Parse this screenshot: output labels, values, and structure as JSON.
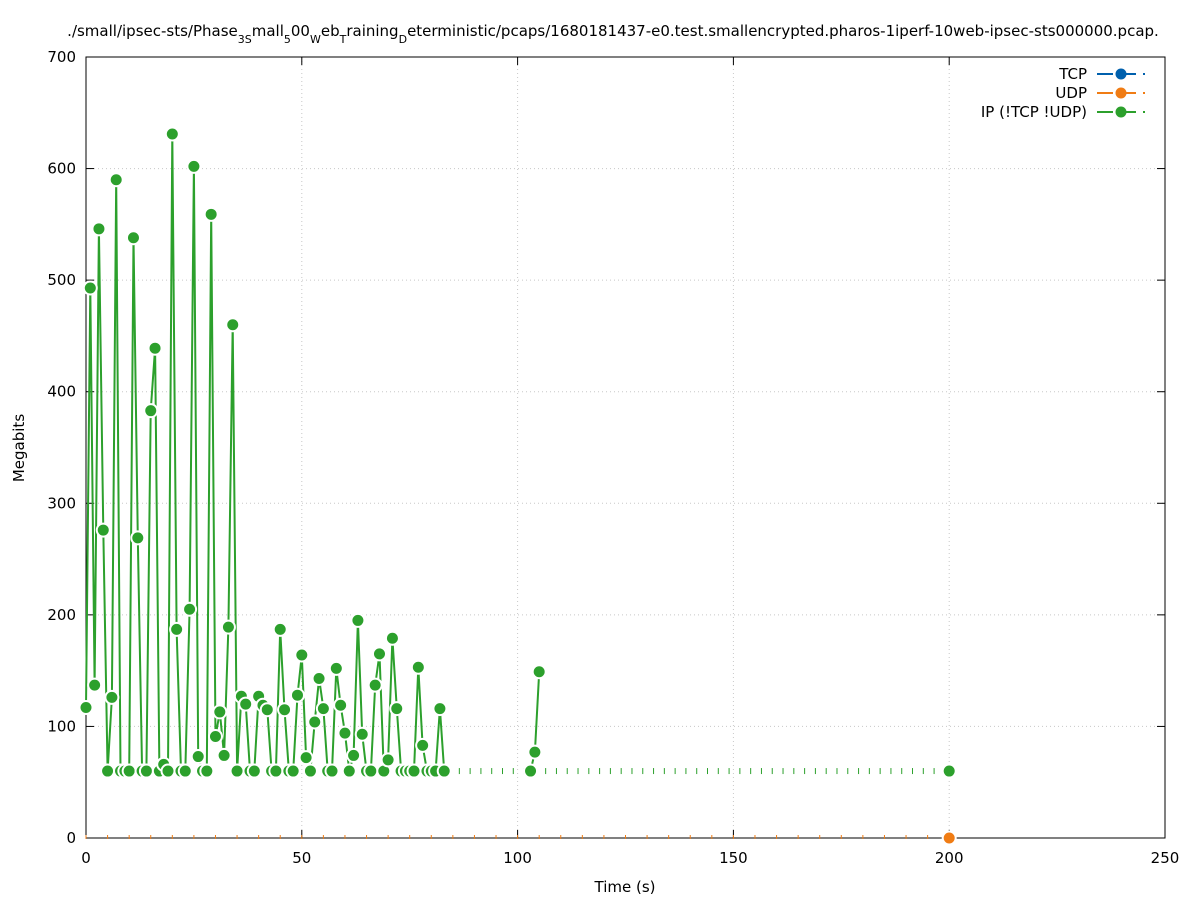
{
  "chart_data": {
    "type": "line",
    "title": {
      "segments": [
        {
          "text": "./small/ipsec-sts/Phase",
          "sub": false
        },
        {
          "text": "3S",
          "sub": true
        },
        {
          "text": "mall",
          "sub": false
        },
        {
          "text": "5",
          "sub": true
        },
        {
          "text": "00",
          "sub": false
        },
        {
          "text": "W",
          "sub": true
        },
        {
          "text": "eb",
          "sub": false
        },
        {
          "text": "T",
          "sub": true
        },
        {
          "text": "raining",
          "sub": false
        },
        {
          "text": "D",
          "sub": true
        },
        {
          "text": "eterministic/pcaps/1680181437-e0.test.smallencrypted.pharos-1iperf-10web-ipsec-sts000000.pcap.",
          "sub": false
        }
      ]
    },
    "xlabel": "Time (s)",
    "ylabel": "Megabits",
    "xlim": [
      0,
      250
    ],
    "ylim": [
      0,
      700
    ],
    "xticks": [
      0,
      50,
      100,
      150,
      200,
      250
    ],
    "yticks": [
      0,
      100,
      200,
      300,
      400,
      500,
      600,
      700
    ],
    "grid": true,
    "legend_position": "top-right",
    "series": [
      {
        "name": "TCP",
        "color": "#0060ad",
        "x": [],
        "y": []
      },
      {
        "name": "UDP",
        "color": "#f07c14",
        "x": [
          200
        ],
        "y": [
          0
        ]
      },
      {
        "name": "IP (!TCP  !UDP)",
        "color": "#2ca02c",
        "x": [
          0,
          1,
          2,
          3,
          4,
          5,
          6,
          7,
          8,
          9,
          10,
          11,
          12,
          13,
          14,
          15,
          16,
          17,
          18,
          19,
          20,
          21,
          22,
          23,
          24,
          25,
          26,
          27,
          28,
          29,
          30,
          31,
          32,
          33,
          34,
          35,
          36,
          37,
          38,
          39,
          40,
          41,
          42,
          43,
          44,
          45,
          46,
          47,
          48,
          49,
          50,
          51,
          52,
          53,
          54,
          55,
          56,
          57,
          58,
          59,
          60,
          61,
          62,
          63,
          64,
          65,
          66,
          67,
          68,
          69,
          70,
          71,
          72,
          73,
          74,
          75,
          76,
          77,
          78,
          79,
          80,
          81,
          82,
          83,
          103,
          104,
          105,
          200
        ],
        "y": [
          117,
          493,
          137,
          546,
          276,
          60,
          126,
          590,
          60,
          60,
          60,
          538,
          269,
          60,
          60,
          383,
          439,
          60,
          66,
          60,
          631,
          187,
          60,
          60,
          205,
          602,
          73,
          60,
          60,
          559,
          91,
          113,
          74,
          189,
          460,
          60,
          127,
          120,
          60,
          60,
          127,
          119,
          115,
          60,
          60,
          187,
          115,
          60,
          60,
          128,
          164,
          72,
          60,
          104,
          143,
          116,
          60,
          60,
          152,
          119,
          94,
          60,
          74,
          195,
          93,
          60,
          60,
          137,
          165,
          60,
          70,
          179,
          116,
          60,
          60,
          60,
          60,
          153,
          83,
          60,
          60,
          60,
          116,
          60,
          60,
          77,
          149,
          60
        ]
      }
    ]
  }
}
